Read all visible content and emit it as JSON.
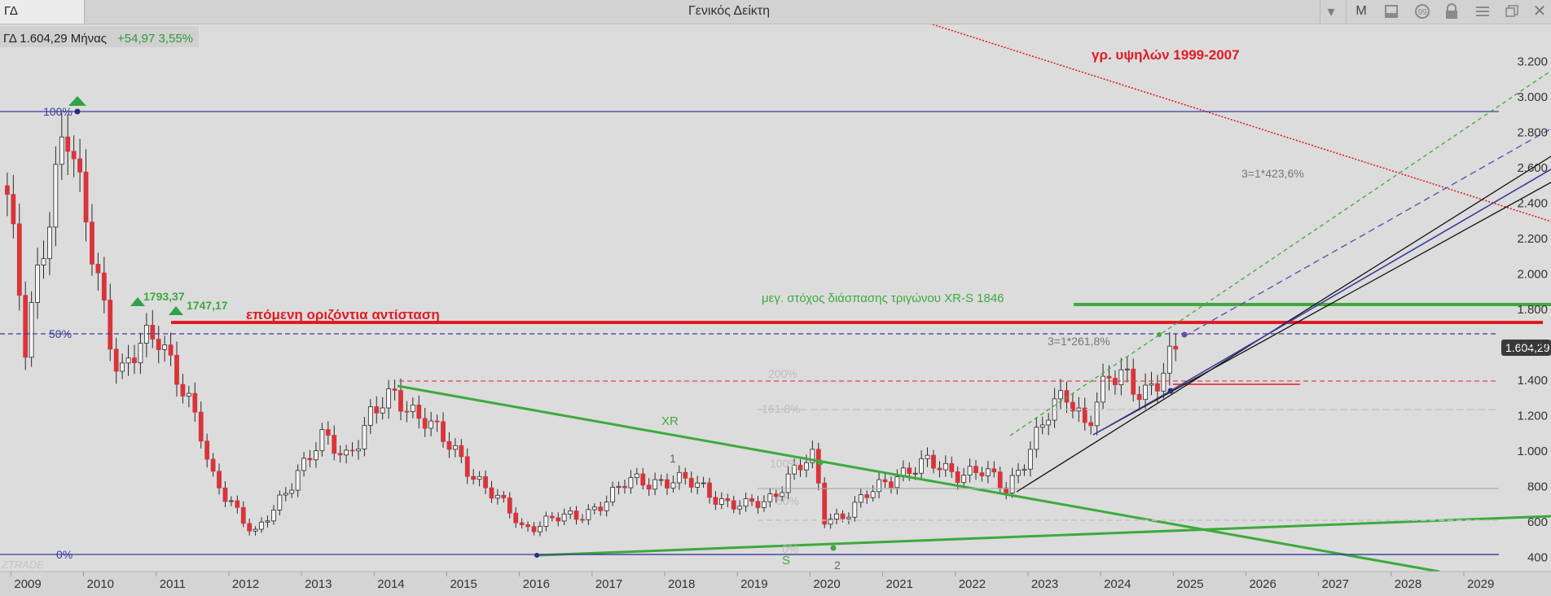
{
  "window": {
    "symbol": "ΓΔ",
    "title": "Γενικός Δείκτη",
    "period_button": "M"
  },
  "quote": {
    "text": "ΓΔ 1.604,29 Μήνας",
    "change": "+54,97 3,55%",
    "last_price_label": "1.604,29"
  },
  "watermark": "ZTRADE",
  "colors": {
    "bg": "#dcdcdc",
    "up_candle": "#f4f4f4",
    "down_candle": "#d8343b",
    "red_line": "#e21b23",
    "green_line": "#3daa3d",
    "navy_line": "#3c3c9e",
    "purple_dash": "#6a4bb4",
    "label_green": "#35a82e"
  },
  "annotations": {
    "text_hist_highs": "γρ. υψηλών 1999-2007",
    "text_next_resistance": "επόμενη οριζόντια αντίσταση",
    "text_triangle_target": "μεγ. στόχος διάσπασης τριγώνου XR-S 1846",
    "text_xr": "XR",
    "text_s": "S",
    "text_fib_423": "3=1*423,6%",
    "text_fib_261": "3=1*261,8%",
    "text_label_1793": "1793,37",
    "text_label_1747": "1747,17",
    "text_wave_1": "1",
    "text_wave_2": "2",
    "text_fib_100_left": "100%",
    "text_fib_50_left": "50%",
    "text_fib_0_left": "0%",
    "text_fib_200_right": "200%",
    "text_fib_1618_right": "161.8%",
    "text_fib_100_right": "100%",
    "text_fib_50_right": "50%",
    "text_fib_0_right": "0%"
  },
  "chart_data": {
    "type": "candlestick",
    "title": "Γενικός Δείκτη",
    "timeframe": "monthly",
    "x_ticks": [
      "2009",
      "2010",
      "2011",
      "2012",
      "2013",
      "2014",
      "2015",
      "2016",
      "2017",
      "2018",
      "2019",
      "2020",
      "2021",
      "2022",
      "2023",
      "2024",
      "2025",
      "2026",
      "2027",
      "2028",
      "2029"
    ],
    "y_ticks": [
      "400",
      "600",
      "800",
      "1.000",
      "1.200",
      "1.400",
      "1.600",
      "1.800",
      "2.000",
      "2.200",
      "2.400",
      "2.600",
      "2.800",
      "3.000",
      "3.200"
    ],
    "y_tick_values": [
      400,
      600,
      800,
      1000,
      1200,
      1400,
      1600,
      1800,
      2000,
      2200,
      2400,
      2600,
      2800,
      3000,
      3200
    ],
    "x_range": [
      2008.85,
      2030.2
    ],
    "y_range": [
      320,
      3410
    ],
    "price_anchors": [
      [
        2008.95,
        2450
      ],
      [
        2009.2,
        1550
      ],
      [
        2009.45,
        2200
      ],
      [
        2009.75,
        2900
      ],
      [
        2009.95,
        2400
      ],
      [
        2010.15,
        2050
      ],
      [
        2010.5,
        1450
      ],
      [
        2010.75,
        1560
      ],
      [
        2011.05,
        1650
      ],
      [
        2011.3,
        1450
      ],
      [
        2011.6,
        1100
      ],
      [
        2011.75,
        850
      ],
      [
        2012.05,
        720
      ],
      [
        2012.35,
        520
      ],
      [
        2012.6,
        650
      ],
      [
        2012.95,
        900
      ],
      [
        2013.3,
        1060
      ],
      [
        2013.6,
        970
      ],
      [
        2013.95,
        1200
      ],
      [
        2014.3,
        1300
      ],
      [
        2014.7,
        1200
      ],
      [
        2014.95,
        1050
      ],
      [
        2015.2,
        950
      ],
      [
        2015.5,
        820
      ],
      [
        2015.8,
        680
      ],
      [
        2016.05,
        560
      ],
      [
        2016.4,
        620
      ],
      [
        2016.8,
        620
      ],
      [
        2017.15,
        720
      ],
      [
        2017.5,
        820
      ],
      [
        2017.9,
        840
      ],
      [
        2018.15,
        830
      ],
      [
        2018.5,
        800
      ],
      [
        2018.9,
        700
      ],
      [
        2019.1,
        680
      ],
      [
        2019.4,
        720
      ],
      [
        2019.75,
        880
      ],
      [
        2020.05,
        950
      ],
      [
        2020.2,
        620
      ],
      [
        2020.5,
        650
      ],
      [
        2020.9,
        780
      ],
      [
        2021.2,
        880
      ],
      [
        2021.6,
        920
      ],
      [
        2022.0,
        890
      ],
      [
        2022.35,
        880
      ],
      [
        2022.7,
        790
      ],
      [
        2023.0,
        1000
      ],
      [
        2023.3,
        1200
      ],
      [
        2023.55,
        1340
      ],
      [
        2023.8,
        1160
      ],
      [
        2024.1,
        1380
      ],
      [
        2024.35,
        1430
      ],
      [
        2024.6,
        1350
      ],
      [
        2024.85,
        1400
      ],
      [
        2025.1,
        1604.29
      ]
    ],
    "horizontal_levels": [
      {
        "value": 2906,
        "label": "100%",
        "style": "navy-solid"
      },
      {
        "value": 1640,
        "label": "50%",
        "style": "navy-dashed"
      },
      {
        "value": 380,
        "label": "0%",
        "style": "navy-solid"
      },
      {
        "value": 1747.17,
        "label": "επόμενη οριζόντια αντίσταση",
        "style": "red-thick"
      },
      {
        "value": 1846,
        "label": "μεγ. στόχος διάσπασης τριγώνου XR-S 1846",
        "style": "green-thick"
      }
    ],
    "price_labels": [
      {
        "x": 2010.55,
        "y": 1793.37,
        "text": "1793,37"
      },
      {
        "x": 2011.1,
        "y": 1747.17,
        "text": "1747,17"
      }
    ],
    "last_price": 1604.29
  }
}
